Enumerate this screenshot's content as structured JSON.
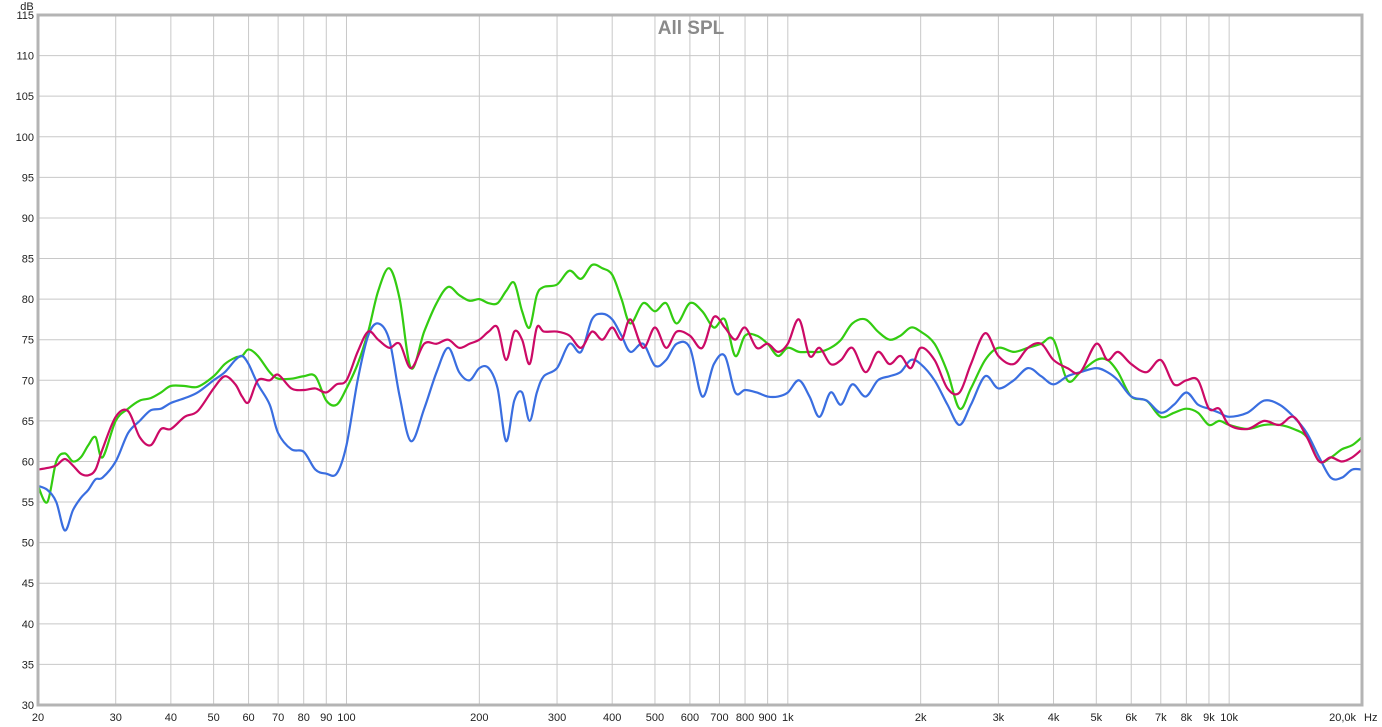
{
  "chart_data": {
    "type": "line",
    "title": "All SPL",
    "ylabel": "dB",
    "xlabel": "Hz",
    "x_scale": "log",
    "xlim": [
      20,
      20000
    ],
    "ylim": [
      30,
      115
    ],
    "grid": true,
    "y_ticks": [
      30,
      35,
      40,
      45,
      50,
      55,
      60,
      65,
      70,
      75,
      80,
      85,
      90,
      95,
      100,
      105,
      110,
      115
    ],
    "x_ticks": [
      {
        "v": 20,
        "label": "20"
      },
      {
        "v": 30,
        "label": "30"
      },
      {
        "v": 40,
        "label": "40"
      },
      {
        "v": 50,
        "label": "50"
      },
      {
        "v": 60,
        "label": "60"
      },
      {
        "v": 70,
        "label": "70"
      },
      {
        "v": 80,
        "label": "80"
      },
      {
        "v": 90,
        "label": "90"
      },
      {
        "v": 100,
        "label": "100"
      },
      {
        "v": 200,
        "label": "200"
      },
      {
        "v": 300,
        "label": "300"
      },
      {
        "v": 400,
        "label": "400"
      },
      {
        "v": 500,
        "label": "500"
      },
      {
        "v": 600,
        "label": "600"
      },
      {
        "v": 700,
        "label": "700"
      },
      {
        "v": 800,
        "label": "800"
      },
      {
        "v": 900,
        "label": "900"
      },
      {
        "v": 1000,
        "label": "1k"
      },
      {
        "v": 2000,
        "label": "2k"
      },
      {
        "v": 3000,
        "label": "3k"
      },
      {
        "v": 4000,
        "label": "4k"
      },
      {
        "v": 5000,
        "label": "5k"
      },
      {
        "v": 6000,
        "label": "6k"
      },
      {
        "v": 7000,
        "label": "7k"
      },
      {
        "v": 8000,
        "label": "8k"
      },
      {
        "v": 9000,
        "label": "9k"
      },
      {
        "v": 10000,
        "label": "10k"
      },
      {
        "v": 20000,
        "label": "20,0k"
      }
    ],
    "x": [
      20,
      21,
      22,
      23,
      24,
      25,
      26,
      27,
      28,
      30,
      32,
      34,
      36,
      38,
      40,
      43,
      46,
      50,
      53,
      56,
      58,
      60,
      63,
      67,
      70,
      75,
      80,
      85,
      90,
      95,
      100,
      106,
      112,
      118,
      125,
      132,
      140,
      150,
      160,
      170,
      180,
      190,
      200,
      210,
      220,
      230,
      240,
      250,
      260,
      270,
      280,
      300,
      320,
      340,
      360,
      380,
      400,
      420,
      440,
      470,
      500,
      530,
      560,
      600,
      640,
      680,
      720,
      760,
      800,
      850,
      900,
      950,
      1000,
      1060,
      1120,
      1180,
      1250,
      1320,
      1400,
      1500,
      1600,
      1700,
      1800,
      1900,
      2000,
      2150,
      2300,
      2450,
      2600,
      2800,
      3000,
      3250,
      3500,
      3750,
      4000,
      4300,
      4600,
      5000,
      5300,
      5600,
      6000,
      6500,
      7000,
      7500,
      8000,
      8500,
      9000,
      9500,
      10000,
      11000,
      12000,
      13000,
      14000,
      15000,
      16000,
      17000,
      18000,
      19000,
      20000
    ],
    "series": [
      {
        "color": "#33cc11",
        "values": [
          57,
          55,
          60,
          61,
          60,
          60.5,
          62,
          63,
          60.5,
          65,
          66.5,
          67.5,
          67.8,
          68.5,
          69.3,
          69.3,
          69.2,
          70.5,
          72,
          72.8,
          73,
          73.8,
          73,
          71,
          70.2,
          70.2,
          70.5,
          70.5,
          67.5,
          67,
          69,
          72,
          76,
          81,
          83.8,
          80,
          71.5,
          76,
          79.5,
          81.5,
          80.5,
          79.8,
          80,
          79.5,
          79.5,
          81,
          82,
          78.5,
          76.5,
          80.5,
          81.5,
          81.8,
          83.5,
          82.5,
          84.2,
          83.8,
          83,
          80,
          77,
          79.5,
          78.5,
          79.5,
          77,
          79.5,
          78.5,
          76.5,
          77.5,
          73,
          75.5,
          75.5,
          74.5,
          73,
          74,
          73.5,
          73.5,
          73.5,
          74,
          75,
          77,
          77.5,
          76,
          75,
          75.5,
          76.5,
          76,
          74.5,
          71,
          66.5,
          69,
          72.5,
          74,
          73.5,
          74,
          74.5,
          75,
          70,
          71,
          72.5,
          72.5,
          71,
          68,
          67.5,
          65.5,
          66,
          66.5,
          66,
          64.5,
          65,
          64.5,
          64,
          64.5,
          64.5,
          64,
          63,
          60,
          60.5,
          61.5,
          62,
          63
        ]
      },
      {
        "color": "#3a6ee0",
        "values": [
          57,
          56.5,
          55,
          51.5,
          54,
          55.5,
          56.5,
          57.8,
          58,
          60,
          63.5,
          65,
          66.3,
          66.5,
          67.2,
          67.8,
          68.5,
          70,
          71,
          72.5,
          73,
          72,
          69.5,
          67,
          63.5,
          61.5,
          61.2,
          59,
          58.5,
          58.5,
          62,
          70,
          75.5,
          77,
          75,
          68,
          62.5,
          66.5,
          71,
          74,
          71,
          70,
          71.5,
          71.5,
          69,
          62.5,
          67.5,
          68.5,
          65,
          68.5,
          70.5,
          71.5,
          74.5,
          73.5,
          77.5,
          78.2,
          77.5,
          75.5,
          73.5,
          74.5,
          71.8,
          72.5,
          74.5,
          74,
          68,
          72,
          73,
          68.5,
          68.8,
          68.5,
          68,
          68,
          68.5,
          70,
          68,
          65.5,
          68.5,
          67,
          69.5,
          68,
          70,
          70.5,
          71,
          72.5,
          72,
          70,
          67,
          64.5,
          67,
          70.5,
          69,
          70,
          71.5,
          70.5,
          69.5,
          70.5,
          71,
          71.5,
          71,
          70,
          68,
          67.5,
          66,
          67,
          68.5,
          67,
          66.5,
          66,
          65.5,
          66,
          67.5,
          67,
          65.5,
          63.5,
          60.5,
          58,
          58,
          59,
          59
        ]
      },
      {
        "color": "#cc0a66",
        "values": [
          59,
          59.2,
          59.5,
          60.3,
          59.5,
          58.5,
          58.3,
          59,
          61.5,
          65.5,
          66.2,
          63,
          62,
          64,
          64,
          65.5,
          66.2,
          69,
          70.5,
          69.5,
          68,
          67.3,
          70,
          70,
          70.7,
          69,
          68.8,
          69,
          68.5,
          69.5,
          70,
          73.5,
          76,
          75,
          74,
          74.5,
          71.5,
          74.5,
          74.5,
          75,
          74,
          74.5,
          75,
          76,
          76.5,
          72.5,
          76,
          75,
          72,
          76.5,
          76,
          76,
          75.5,
          74,
          76,
          75,
          76.5,
          75,
          77.5,
          74,
          76.5,
          74,
          76,
          75.5,
          74,
          77.8,
          76.5,
          75,
          76.5,
          74,
          74.5,
          73.5,
          74.5,
          77.5,
          73,
          74,
          72,
          72.5,
          74,
          71,
          73.5,
          72,
          73,
          71.5,
          74,
          72.5,
          69,
          68.5,
          72,
          75.8,
          73,
          72,
          74,
          74.5,
          72.5,
          71.5,
          71,
          74.5,
          72.5,
          73.5,
          72,
          71,
          72.5,
          69.5,
          70,
          70,
          66.5,
          66.5,
          64.5,
          64,
          65,
          64.5,
          65.5,
          63,
          60,
          60.5,
          60,
          60.5,
          61.5
        ]
      }
    ]
  }
}
